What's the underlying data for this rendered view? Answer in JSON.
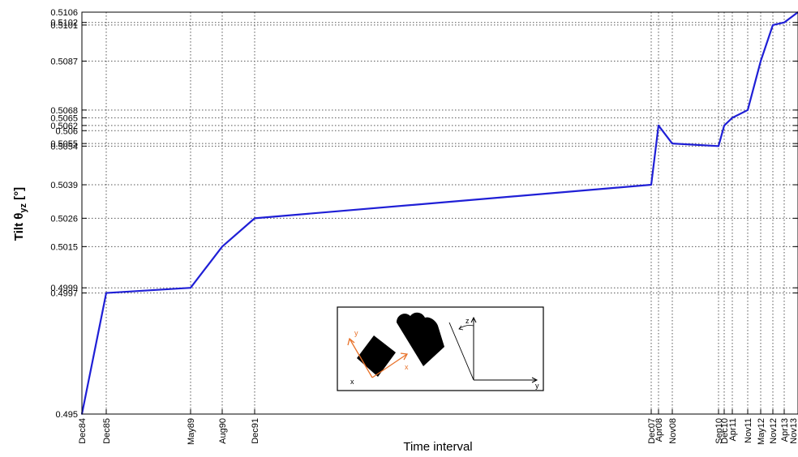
{
  "chart_data": {
    "type": "line",
    "xlabel": "Time interval",
    "ylabel_main": "Tilt θ",
    "ylabel_sub": "yz",
    "ylabel_unit": " [°]",
    "ylim": [
      0.495,
      0.5106
    ],
    "grid": true,
    "x_ticks": [
      "Dec84",
      "Dec85",
      "May89",
      "Aug90",
      "Dec91",
      "Dec07",
      "Apr08",
      "Nov08",
      "Sep10",
      "Dec10",
      "Apr11",
      "Nov11",
      "May12",
      "Nov12",
      "Apr13",
      "Nov13"
    ],
    "y_ticks": [
      {
        "value": 0.495,
        "label": "0.495"
      },
      {
        "value": 0.4997,
        "label": "0.4997"
      },
      {
        "value": 0.4999,
        "label": "0.4999"
      },
      {
        "value": 0.5015,
        "label": "0.5015"
      },
      {
        "value": 0.5026,
        "label": "0.5026"
      },
      {
        "value": 0.5039,
        "label": "0.5039"
      },
      {
        "value": 0.5054,
        "label": "0.5054"
      },
      {
        "value": 0.5055,
        "label": "0.5055"
      },
      {
        "value": 0.506,
        "label": "0.506"
      },
      {
        "value": 0.5062,
        "label": "0.5062"
      },
      {
        "value": 0.5065,
        "label": "0.5065"
      },
      {
        "value": 0.5068,
        "label": "0.5068"
      },
      {
        "value": 0.5087,
        "label": "0.5087"
      },
      {
        "value": 0.5101,
        "label": "0.5101"
      },
      {
        "value": 0.5102,
        "label": "0.5102"
      },
      {
        "value": 0.5106,
        "label": "0.5106"
      }
    ],
    "series": [
      {
        "color": "#1f1fd6",
        "x": [
          "Dec84",
          "Dec85",
          "May89",
          "Aug90",
          "Dec91",
          "Dec07",
          "Apr08",
          "Nov08",
          "Sep10",
          "Dec10",
          "Apr11",
          "Nov11",
          "May12",
          "Nov12",
          "Apr13",
          "Nov13"
        ],
        "y": [
          0.495,
          0.4997,
          0.4999,
          0.5015,
          0.5026,
          0.5039,
          0.5062,
          0.5055,
          0.5054,
          0.5062,
          0.5065,
          0.5068,
          0.5087,
          0.5101,
          0.5102,
          0.5106
        ]
      }
    ]
  },
  "inset": {
    "label_y1": "y",
    "label_x1": "x",
    "label_z": "z",
    "label_y2": "y",
    "label_mark": "x"
  }
}
